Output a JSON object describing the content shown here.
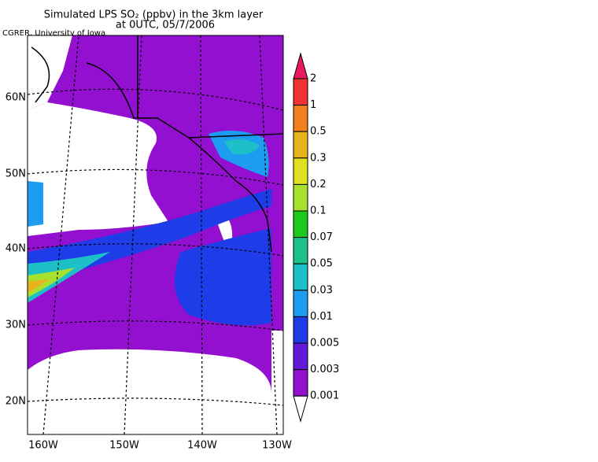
{
  "header": {
    "title": "Simulated LPS SO₂ (ppbv) in the 3km layer",
    "subtitle": "at 0UTC, 05/7/2006",
    "credit": "CGRER, University of Iowa"
  },
  "map": {
    "lat_labels": [
      "60N",
      "50N",
      "40N",
      "30N",
      "20N"
    ],
    "lon_labels": [
      "160W",
      "150W",
      "140W",
      "130W"
    ]
  },
  "colorbar": {
    "labels": [
      "2",
      "1",
      "0.5",
      "0.3",
      "0.2",
      "0.1",
      "0.07",
      "0.05",
      "0.03",
      "0.01",
      "0.005",
      "0.003",
      "0.001"
    ],
    "colors": [
      "#e8185c",
      "#f03232",
      "#f08020",
      "#e8b41e",
      "#e0e01e",
      "#a8e030",
      "#1ec81e",
      "#1ec08c",
      "#1ec0c8",
      "#1e9cf0",
      "#1e3ce8",
      "#6418d8",
      "#9410d0"
    ],
    "under_color": "#ffffff"
  }
}
